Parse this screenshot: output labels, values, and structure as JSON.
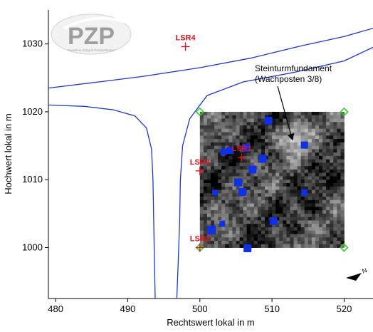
{
  "map": {
    "x_axis": {
      "title": "Rechtswert lokal in m",
      "ticks": [
        480,
        490,
        500,
        510,
        520
      ],
      "range": [
        479,
        524
      ]
    },
    "y_axis": {
      "title": "Hochwert lokal in m",
      "ticks": [
        1000,
        1010,
        1020,
        1030
      ],
      "range": [
        992.5,
        1035
      ]
    },
    "logo": {
      "text": "PZP",
      "subtext": "Posselt & Zickgraf Prospektionen",
      "color": "#9e9e9e"
    },
    "colors": {
      "road": "#1f35d6",
      "marker": "#e0141e",
      "corner": "#2fd12a",
      "anomaly": "#1030e8"
    },
    "roads": [
      [
        [
          479,
          1023.5
        ],
        [
          486,
          1024.4
        ],
        [
          492,
          1025.2
        ],
        [
          500,
          1026.5
        ],
        [
          507,
          1027.9
        ],
        [
          514,
          1029.7
        ],
        [
          520,
          1031.1
        ],
        [
          524,
          1032.3
        ]
      ],
      [
        [
          479,
          1021
        ],
        [
          484,
          1020.8
        ],
        [
          488,
          1020.3
        ],
        [
          491,
          1019.4
        ],
        [
          492.6,
          1017.6
        ],
        [
          493.3,
          1014.5
        ],
        [
          493.5,
          1010
        ],
        [
          493.6,
          1004
        ],
        [
          493.7,
          998
        ],
        [
          493.8,
          992.5
        ]
      ],
      [
        [
          496.8,
          992.5
        ],
        [
          497,
          998
        ],
        [
          497.2,
          1004
        ],
        [
          497.3,
          1010
        ],
        [
          497.6,
          1015
        ],
        [
          498.6,
          1019
        ],
        [
          501,
          1022.4
        ],
        [
          506,
          1024.4
        ],
        [
          513,
          1025.8
        ],
        [
          520,
          1027.5
        ],
        [
          524,
          1029.5
        ]
      ]
    ],
    "survey_area": {
      "x_range": [
        500,
        520
      ],
      "y_range": [
        1000,
        1020
      ],
      "corners": [
        [
          500,
          1020
        ],
        [
          520,
          1020
        ],
        [
          520,
          1000
        ],
        [
          500,
          1000
        ]
      ]
    },
    "anomalies": [
      [
        509.5,
        1018.7
      ],
      [
        514.5,
        1015.1
      ],
      [
        503.3,
        1014.1
      ],
      [
        504.2,
        1014.3
      ],
      [
        506.4,
        1014.7
      ],
      [
        507.3,
        1011.5
      ],
      [
        508.7,
        1013.1
      ],
      [
        505.3,
        1009.6
      ],
      [
        505.9,
        1008.2
      ],
      [
        502.1,
        1008.1
      ],
      [
        514.5,
        1008.1
      ],
      [
        503.1,
        1003.5
      ],
      [
        510.2,
        1003.9
      ],
      [
        501.6,
        1002.6
      ],
      [
        506.6,
        999.9
      ]
    ],
    "points": [
      {
        "label": "LSR4",
        "x": 498,
        "y": 1029.6
      },
      {
        "label": "LSR1",
        "x": 505.8,
        "y": 1013.3
      },
      {
        "label": "LSR3",
        "x": 500,
        "y": 1011.3
      },
      {
        "label": "LSR2",
        "x": 500,
        "y": 1000
      }
    ],
    "annotation": {
      "lines": [
        "Steinturmfundament",
        "(Wachposten 3/8)"
      ],
      "arrow_to": [
        512.8,
        1016
      ]
    },
    "north_arrow": {
      "label": "N",
      "icon": "north-arrow-icon"
    }
  }
}
